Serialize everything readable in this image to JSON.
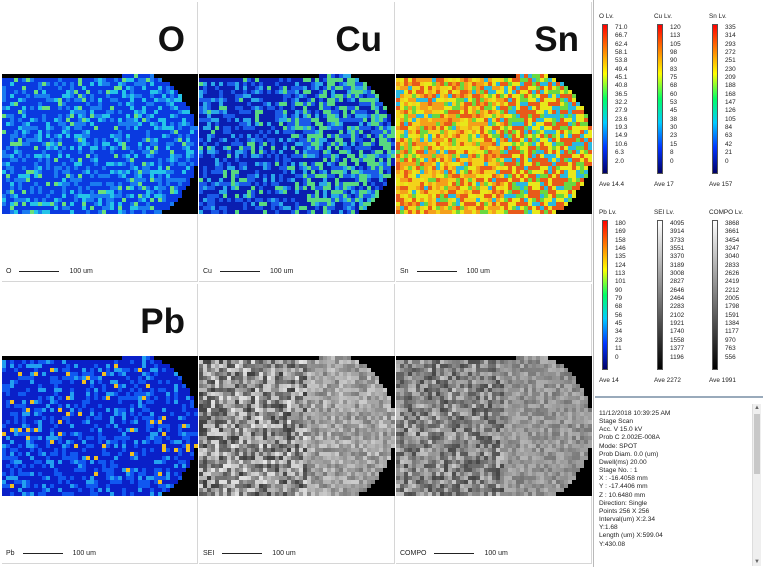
{
  "panels": [
    {
      "id": "o",
      "big_label": "O",
      "scale_label": "O",
      "scale_text": "100 um",
      "palette": "blue"
    },
    {
      "id": "cu",
      "big_label": "Cu",
      "scale_label": "Cu",
      "scale_text": "100 um",
      "palette": "blue-mid"
    },
    {
      "id": "sn",
      "big_label": "Sn",
      "scale_label": "Sn",
      "scale_text": "100 um",
      "palette": "hot"
    },
    {
      "id": "pb",
      "big_label": "Pb",
      "scale_label": "Pb",
      "scale_text": "100 um",
      "palette": "blue-spots"
    },
    {
      "id": "sei",
      "big_label": "",
      "scale_label": "SEI",
      "scale_text": "100 um",
      "palette": "gray"
    },
    {
      "id": "compo",
      "big_label": "",
      "scale_label": "COMPO",
      "scale_text": "100 um",
      "palette": "gray2"
    }
  ],
  "legends": [
    {
      "title": "O Lv.",
      "ticks": [
        "71.0",
        "66.7",
        "62.4",
        "58.1",
        "53.8",
        "49.4",
        "45.1",
        "40.8",
        "36.5",
        "32.2",
        "27.9",
        "23.6",
        "19.3",
        "14.9",
        "10.6",
        "6.3",
        "2.0"
      ],
      "ave": "Ave 14.4",
      "type": "color"
    },
    {
      "title": "Cu Lv.",
      "ticks": [
        "120",
        "113",
        "105",
        "98",
        "90",
        "83",
        "75",
        "68",
        "60",
        "53",
        "45",
        "38",
        "30",
        "23",
        "15",
        "8",
        "0"
      ],
      "ave": "Ave 17",
      "type": "color"
    },
    {
      "title": "Sn Lv.",
      "ticks": [
        "335",
        "314",
        "293",
        "272",
        "251",
        "230",
        "209",
        "188",
        "168",
        "147",
        "126",
        "105",
        "84",
        "63",
        "42",
        "21",
        "0"
      ],
      "ave": "Ave 157",
      "type": "color"
    },
    {
      "title": "Pb Lv.",
      "ticks": [
        "180",
        "169",
        "158",
        "146",
        "135",
        "124",
        "113",
        "101",
        "90",
        "79",
        "68",
        "56",
        "45",
        "34",
        "23",
        "11",
        "0"
      ],
      "ave": "Ave 14",
      "type": "color"
    },
    {
      "title": "SEI Lv.",
      "ticks": [
        "4095",
        "3914",
        "3733",
        "3551",
        "3370",
        "3189",
        "3008",
        "2827",
        "2646",
        "2464",
        "2283",
        "2102",
        "1921",
        "1740",
        "1558",
        "1377",
        "1196"
      ],
      "ave": "Ave 2272",
      "type": "gray"
    },
    {
      "title": "COMPO Lv.",
      "ticks": [
        "3868",
        "3661",
        "3454",
        "3247",
        "3040",
        "2833",
        "2626",
        "2419",
        "2212",
        "2005",
        "1798",
        "1591",
        "1384",
        "1177",
        "970",
        "763",
        "556"
      ],
      "ave": "Ave 1991",
      "type": "gray"
    }
  ],
  "info": {
    "lines": [
      "11/12/2018 10:39:25 AM",
      "Stage Scan",
      "Acc. V    15.0 kV",
      "Prob C   2.002E-008A",
      "Mode: SPOT",
      "Prob Diam. 0.0 (um)",
      "Dwell(ms) 20.00",
      "Stage No. : 1",
      "  X : -16.4058 mm",
      "  Y : -17.4406 mm",
      "  Z : 10.6480 mm",
      "Direction: Single",
      "Points  256 X 256",
      "Interval(um) X:2.34",
      "            Y:1.68",
      "Length  (um) X:599.04",
      "            Y:430.08"
    ]
  },
  "colors": {
    "map_bg": "#000000",
    "accent_scroll": "#c8c8c8"
  }
}
